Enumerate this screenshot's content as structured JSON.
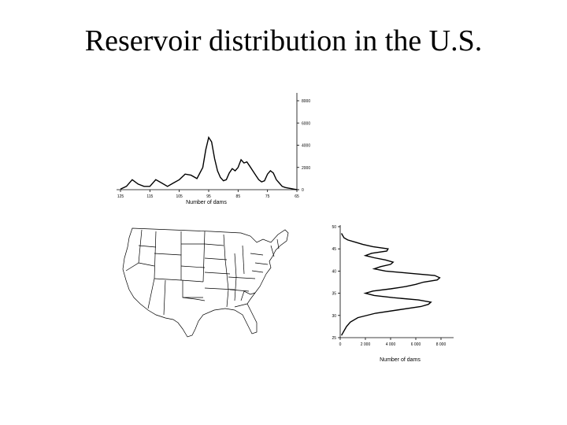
{
  "slide": {
    "title": "Reservoir distribution in the U.S."
  },
  "chart_data": [
    {
      "type": "line",
      "orientation": "horizontal",
      "xlabel": "Number of dams",
      "ylabel": "",
      "xlim": [
        125,
        65
      ],
      "ylim": [
        0,
        8000
      ],
      "x_ticks": [
        "125",
        "115",
        "105",
        "95",
        "85",
        "75",
        "65"
      ],
      "y_ticks": [
        "0",
        "2000",
        "4000",
        "6000",
        "8000"
      ],
      "series": [
        {
          "x": [
            125,
            123,
            121,
            119,
            117,
            115,
            113,
            111,
            109,
            107,
            105,
            103,
            101,
            99,
            97,
            96,
            95,
            94,
            93,
            92,
            91,
            90,
            89,
            88,
            87,
            86,
            85,
            84,
            83,
            82,
            81,
            80,
            79,
            78,
            77,
            76,
            75,
            74,
            73,
            72,
            71,
            70,
            69,
            68,
            67,
            66,
            65
          ],
          "values": [
            50,
            300,
            900,
            500,
            300,
            300,
            900,
            600,
            300,
            600,
            900,
            1400,
            1300,
            1000,
            2000,
            3600,
            4700,
            4300,
            2800,
            1700,
            1100,
            800,
            900,
            1500,
            1900,
            1700,
            2000,
            2700,
            2400,
            2500,
            2100,
            1700,
            1300,
            900,
            700,
            800,
            1400,
            1700,
            1500,
            900,
            600,
            300,
            200,
            150,
            100,
            50,
            0
          ]
        }
      ]
    },
    {
      "type": "line",
      "orientation": "vertical",
      "xlabel": "Number of dams",
      "ylabel": "",
      "xlim": [
        0,
        8000
      ],
      "ylim": [
        25,
        50
      ],
      "x_ticks": [
        "0",
        "2 000",
        "4 000",
        "6 000",
        "8 000"
      ],
      "y_ticks": [
        "25",
        "30",
        "35",
        "40",
        "45",
        "50"
      ],
      "series": [
        {
          "y": [
            25.5,
            26.5,
            27.5,
            28.5,
            29.5,
            30.5,
            31.3,
            32.0,
            32.5,
            33.0,
            33.5,
            34.0,
            34.5,
            35.0,
            35.5,
            36.0,
            36.5,
            37.0,
            37.5,
            38.0,
            38.5,
            39.0,
            39.5,
            40.0,
            40.5,
            41.0,
            41.5,
            42.0,
            42.5,
            43.0,
            43.5,
            44.0,
            44.5,
            45.0,
            45.5,
            46.0,
            46.5,
            47.0,
            47.5,
            48.5
          ],
          "values": [
            100,
            300,
            500,
            800,
            1400,
            2800,
            4700,
            6400,
            7000,
            7200,
            6200,
            4200,
            2700,
            2000,
            2600,
            4000,
            5200,
            6000,
            6600,
            7700,
            7900,
            7500,
            5500,
            3600,
            2700,
            3200,
            4000,
            4200,
            3600,
            2700,
            2000,
            2500,
            3700,
            3800,
            2600,
            1800,
            1200,
            600,
            300,
            100
          ]
        }
      ]
    }
  ]
}
